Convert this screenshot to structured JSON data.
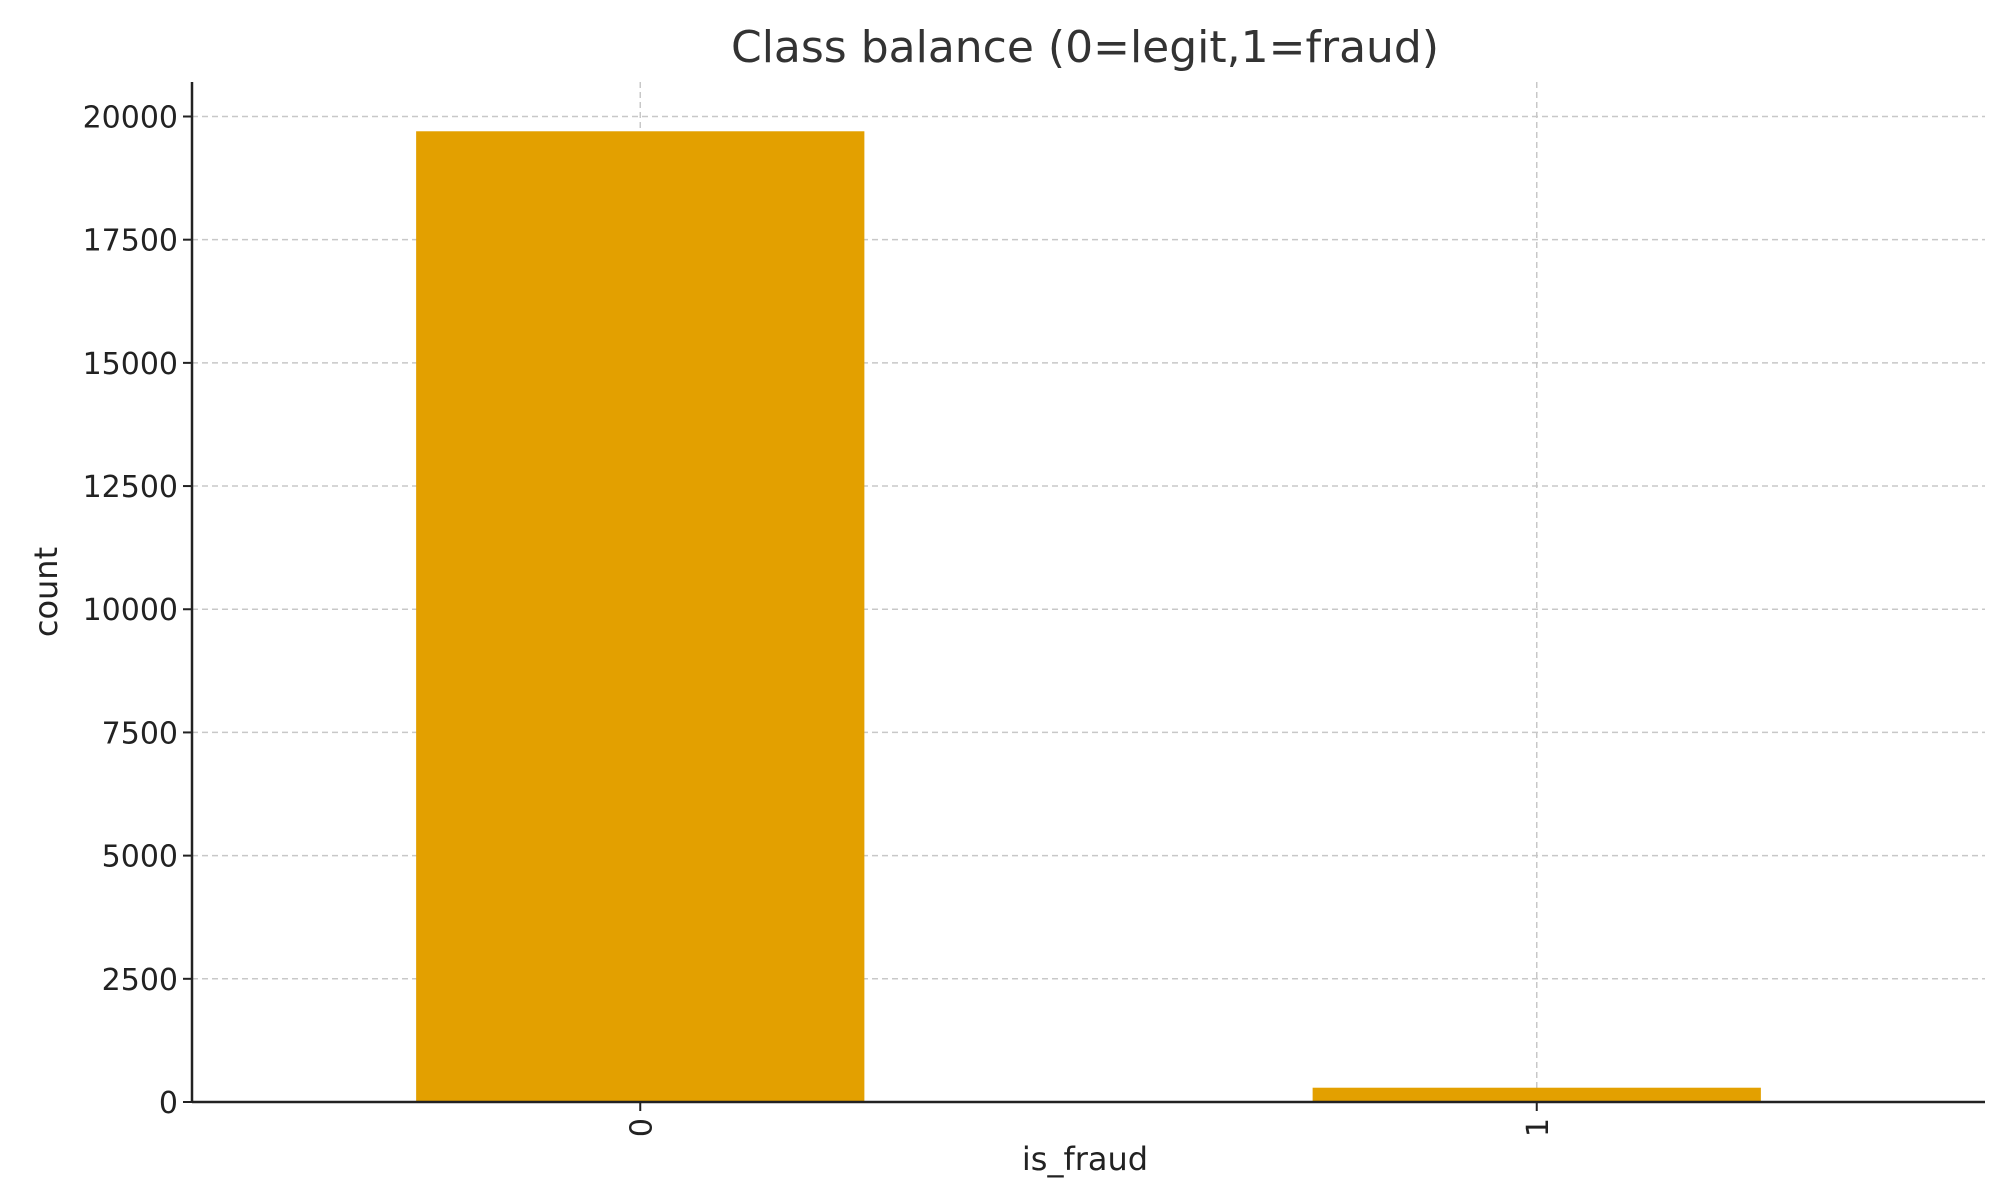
{
  "chart_data": {
    "type": "bar",
    "title": "Class balance (0=legit,1=fraud)",
    "xlabel": "is_fraud",
    "ylabel": "count",
    "categories": [
      "0",
      "1"
    ],
    "values": [
      19700,
      290
    ],
    "ylim": [
      0,
      20700
    ],
    "yticks": [
      0,
      2500,
      5000,
      7500,
      10000,
      12500,
      15000,
      17500,
      20000
    ],
    "grid": true,
    "bar_color": "#E3A000"
  }
}
